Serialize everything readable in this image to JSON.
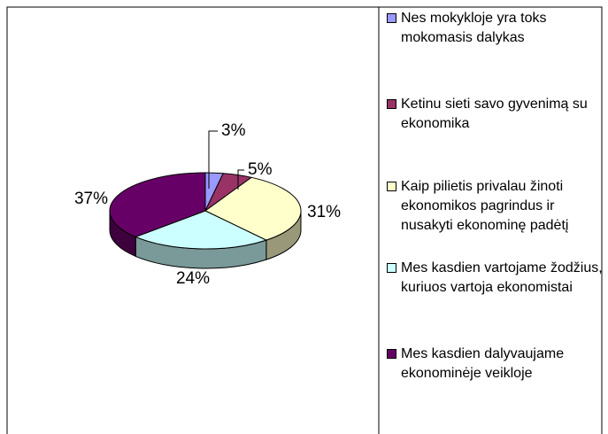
{
  "chart_data": {
    "type": "pie",
    "categories": [
      "Nes mokykloje yra toks mokomasis dalykas",
      "Ketinu sieti savo gyvenimą su ekonomika",
      "Kaip pilietis privalau žinoti ekonomikos pagrindus ir nusakyti ekonominę padėtį",
      "Mes kasdien vartojame žodžius, kuriuos vartoja ekonomistai",
      "Mes kasdien dalyvaujame ekonominėje veikloje"
    ],
    "values": [
      3,
      5,
      31,
      24,
      37
    ],
    "value_labels": [
      "3%",
      "5%",
      "31%",
      "24%",
      "37%"
    ],
    "colors": [
      "#9999ff",
      "#993366",
      "#ffffcc",
      "#ccffff",
      "#660066"
    ],
    "legend": "right"
  }
}
